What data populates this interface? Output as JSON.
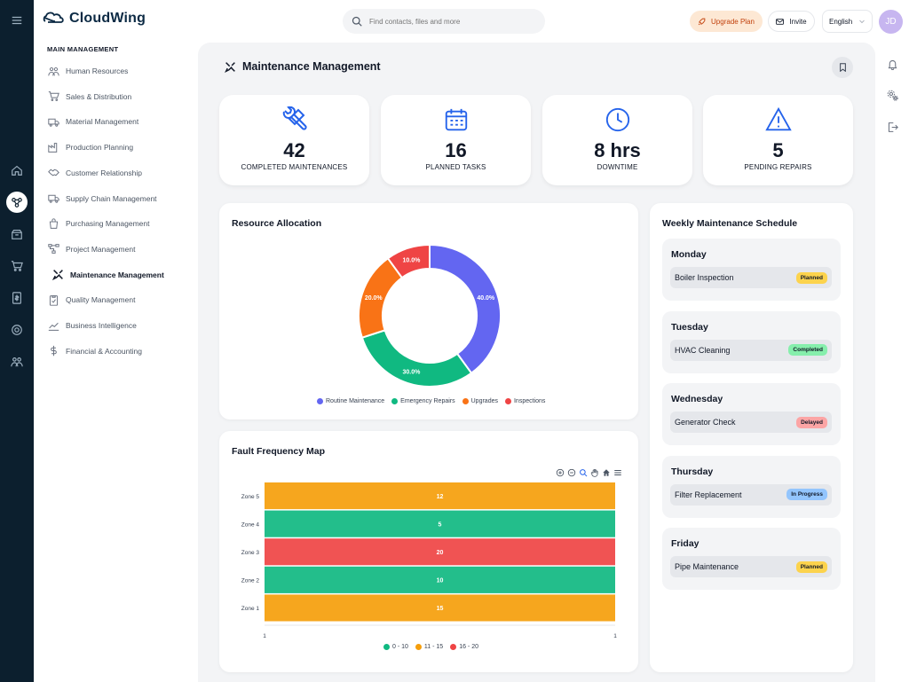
{
  "brand": {
    "name": "CloudWing"
  },
  "search": {
    "placeholder": "Find contacts, files and more"
  },
  "header": {
    "upgrade_label": "Upgrade Plan",
    "invite_label": "Invite",
    "language": "English",
    "avatar_initials": "JD"
  },
  "sidebar": {
    "section_title": "MAIN MANAGEMENT",
    "items": [
      {
        "label": "Human Resources",
        "icon": "users-icon"
      },
      {
        "label": "Sales & Distribution",
        "icon": "cart-icon"
      },
      {
        "label": "Material Management",
        "icon": "truck-icon"
      },
      {
        "label": "Production Planning",
        "icon": "factory-icon"
      },
      {
        "label": "Customer Relationship",
        "icon": "handshake-icon"
      },
      {
        "label": "Supply Chain Management",
        "icon": "truck-icon"
      },
      {
        "label": "Purchasing Management",
        "icon": "bag-icon"
      },
      {
        "label": "Project Management",
        "icon": "flow-icon"
      },
      {
        "label": "Maintenance Management",
        "icon": "tools-icon"
      },
      {
        "label": "Quality Management",
        "icon": "clipboard-check-icon"
      },
      {
        "label": "Business Intelligence",
        "icon": "trend-icon"
      },
      {
        "label": "Financial & Accounting",
        "icon": "dollar-icon"
      }
    ],
    "active_index": 8
  },
  "page": {
    "title": "Maintenance Management"
  },
  "stats": [
    {
      "value": "42",
      "label": "COMPLETED MAINTENANCES",
      "icon": "tools-icon"
    },
    {
      "value": "16",
      "label": "PLANNED TASKS",
      "icon": "calendar-icon"
    },
    {
      "value": "8 hrs",
      "label": "DOWNTIME",
      "icon": "clock-icon"
    },
    {
      "value": "5",
      "label": "PENDING REPAIRS",
      "icon": "warning-icon"
    }
  ],
  "resource_allocation": {
    "title": "Resource Allocation",
    "chart_data": {
      "type": "pie",
      "categories": [
        "Routine Maintenance",
        "Emergency Repairs",
        "Upgrades",
        "Inspections"
      ],
      "values": [
        40.0,
        30.0,
        20.0,
        10.0
      ],
      "labels": [
        "40.0%",
        "30.0%",
        "20.0%",
        "10.0%"
      ],
      "colors": [
        "#6366f1",
        "#10b981",
        "#f97316",
        "#ef4444"
      ],
      "donut": true,
      "legend": "bottom"
    }
  },
  "fault_map": {
    "title": "Fault Frequency Map",
    "chart_data": {
      "type": "heatmap",
      "categories": [
        "Zone 5",
        "Zone 4",
        "Zone 3",
        "Zone 2",
        "Zone 1"
      ],
      "values": [
        12,
        5,
        20,
        10,
        15
      ],
      "x_ticks": [
        "1",
        "1"
      ],
      "legend_items": [
        {
          "label": "0 - 10",
          "color": "#10b981"
        },
        {
          "label": "11 - 15",
          "color": "#f59e0b"
        },
        {
          "label": "16 - 20",
          "color": "#ef4444"
        }
      ],
      "legend": "bottom"
    }
  },
  "schedule": {
    "title": "Weekly Maintenance Schedule",
    "days": [
      {
        "day": "Monday",
        "task": "Boiler Inspection",
        "status": "Planned",
        "bg": "#fcd34d",
        "fg": "#111827"
      },
      {
        "day": "Tuesday",
        "task": "HVAC Cleaning",
        "status": "Completed",
        "bg": "#86efac",
        "fg": "#111827"
      },
      {
        "day": "Wednesday",
        "task": "Generator Check",
        "status": "Delayed",
        "bg": "#fca5a5",
        "fg": "#111827"
      },
      {
        "day": "Thursday",
        "task": "Filter Replacement",
        "status": "In Progress",
        "bg": "#93c5fd",
        "fg": "#111827"
      },
      {
        "day": "Friday",
        "task": "Pipe Maintenance",
        "status": "Planned",
        "bg": "#fcd34d",
        "fg": "#111827"
      }
    ]
  }
}
